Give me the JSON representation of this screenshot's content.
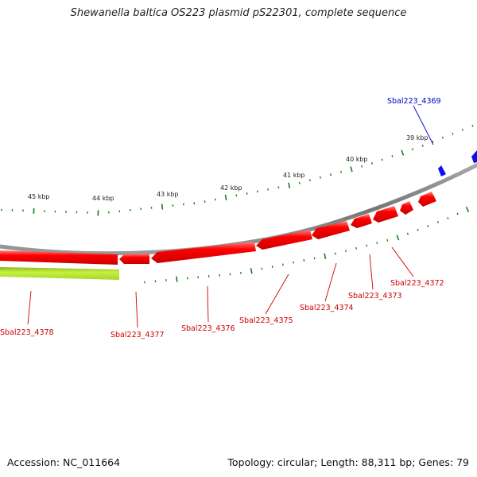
{
  "title": "Shewanella baltica OS223 plasmid pS22301, complete sequence",
  "footer": {
    "accession": "Accession: NC_011664",
    "topology": "Topology: circular; Length: 88,311 bp; Genes: 79"
  },
  "colors": {
    "forward_gene": "#1010ee",
    "reverse_gene": "#ff0000",
    "rna_gene": "#a8e020",
    "backbone": "#8a8a8a",
    "tick": "#1a7a1a",
    "label_reverse": "#cc0000",
    "label_forward": "#0000cc"
  },
  "scale_labels": [
    "45 kbp",
    "44 kbp",
    "43 kbp",
    "42 kbp",
    "41 kbp",
    "40 kbp",
    "39 kbp"
  ],
  "gene_labels": [
    {
      "text": "Sbal223_4369",
      "strand": "forward"
    },
    {
      "text": "Sbal223_4372",
      "strand": "reverse"
    },
    {
      "text": "Sbal223_4373",
      "strand": "reverse"
    },
    {
      "text": "Sbal223_4374",
      "strand": "reverse"
    },
    {
      "text": "Sbal223_4375",
      "strand": "reverse"
    },
    {
      "text": "Sbal223_4376",
      "strand": "reverse"
    },
    {
      "text": "Sbal223_4377",
      "strand": "reverse"
    },
    {
      "text": "Sbal223_4378",
      "strand": "reverse"
    }
  ]
}
